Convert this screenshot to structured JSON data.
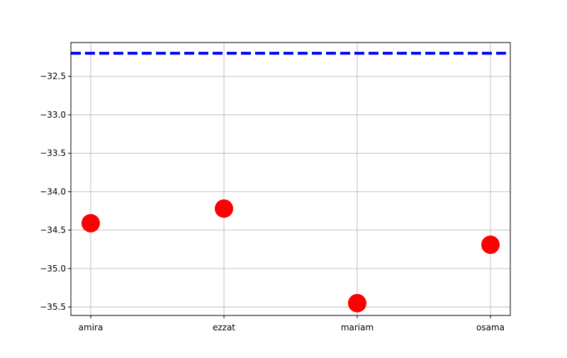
{
  "chart_data": {
    "type": "scatter",
    "categories": [
      "amira",
      "ezzat",
      "mariam",
      "osama"
    ],
    "values": [
      -34.41,
      -34.22,
      -35.45,
      -34.69
    ],
    "reference_line": {
      "y": -32.2,
      "color": "#0000ff",
      "style": "dashed"
    },
    "marker_color": "#ff0000",
    "yticks": [
      -32.5,
      -33.0,
      -33.5,
      -34.0,
      -34.5,
      -35.0,
      -35.5
    ],
    "ytick_labels": [
      "−32.5",
      "−33.0",
      "−33.5",
      "−34.0",
      "−34.5",
      "−35.0",
      "−35.5"
    ],
    "ylim": [
      -35.61,
      -32.06
    ],
    "grid": true,
    "title": "",
    "xlabel": "",
    "ylabel": ""
  }
}
